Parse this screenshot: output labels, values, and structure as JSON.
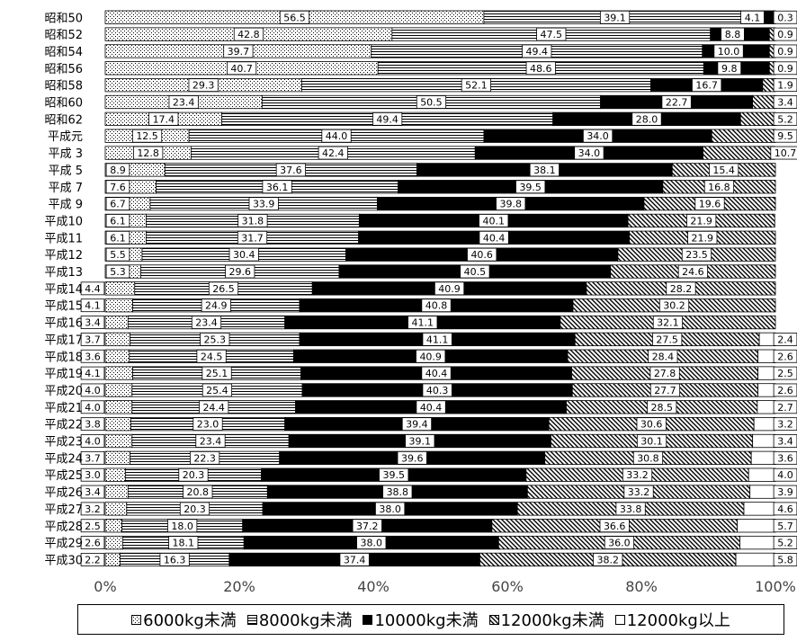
{
  "chart_data": {
    "type": "bar",
    "orientation": "horizontal",
    "stacked": true,
    "percent": true,
    "categories": [
      "昭和50",
      "昭和52",
      "昭和54",
      "昭和56",
      "昭和58",
      "昭和60",
      "昭和62",
      "平成元",
      "平成 3",
      "平成 5",
      "平成 7",
      "平成 9",
      "平成10",
      "平成11",
      "平成12",
      "平成13",
      "平成14",
      "平成15",
      "平成16",
      "平成17",
      "平成18",
      "平成19",
      "平成20",
      "平成21",
      "平成22",
      "平成23",
      "平成24",
      "平成25",
      "平成26",
      "平成27",
      "平成28",
      "平成29",
      "平成30"
    ],
    "series": [
      {
        "name": "6000kg未満",
        "pattern": "dots",
        "values": [
          56.5,
          42.8,
          39.7,
          40.7,
          29.3,
          23.4,
          17.4,
          12.5,
          12.8,
          8.9,
          7.6,
          6.7,
          6.1,
          6.1,
          5.5,
          5.3,
          4.4,
          4.1,
          3.4,
          3.7,
          3.6,
          4.1,
          4.0,
          4.0,
          3.8,
          4.0,
          3.7,
          3.0,
          3.4,
          3.2,
          2.5,
          2.6,
          2.2
        ]
      },
      {
        "name": "8000kg未満",
        "pattern": "horizontal-lines",
        "values": [
          39.1,
          47.5,
          49.4,
          48.6,
          52.1,
          50.5,
          49.4,
          44.0,
          42.4,
          37.6,
          36.1,
          33.9,
          31.8,
          31.7,
          30.4,
          29.6,
          26.5,
          24.9,
          23.4,
          25.3,
          24.5,
          25.1,
          25.4,
          24.4,
          23.0,
          23.4,
          22.3,
          20.3,
          20.8,
          20.3,
          18.0,
          18.1,
          16.3
        ]
      },
      {
        "name": "10000kg未満",
        "pattern": "solid-black",
        "values": [
          4.1,
          8.8,
          10.0,
          9.8,
          16.7,
          22.7,
          28.0,
          34.0,
          34.0,
          38.1,
          39.5,
          39.8,
          40.1,
          40.4,
          40.6,
          40.5,
          40.9,
          40.8,
          41.1,
          41.1,
          40.9,
          40.4,
          40.3,
          40.4,
          39.4,
          39.1,
          39.6,
          39.5,
          38.8,
          38.0,
          37.2,
          38.0,
          37.4
        ]
      },
      {
        "name": "12000kg未満",
        "pattern": "diagonal-hatch",
        "values": [
          0.3,
          0.9,
          0.9,
          0.9,
          1.9,
          3.4,
          5.2,
          9.5,
          10.7,
          15.4,
          16.8,
          19.6,
          21.9,
          21.9,
          23.5,
          24.6,
          28.2,
          30.2,
          32.1,
          27.5,
          28.4,
          27.8,
          27.7,
          28.5,
          30.6,
          30.1,
          30.8,
          33.2,
          33.2,
          33.8,
          36.6,
          36.0,
          38.2
        ]
      },
      {
        "name": "12000kg以上",
        "pattern": "white",
        "values": [
          null,
          null,
          null,
          null,
          null,
          null,
          null,
          null,
          null,
          null,
          null,
          null,
          null,
          null,
          null,
          null,
          null,
          null,
          null,
          2.4,
          2.6,
          2.5,
          2.6,
          2.7,
          3.2,
          3.4,
          3.6,
          4.0,
          3.9,
          4.6,
          5.7,
          5.2,
          5.8
        ]
      }
    ],
    "x_ticks": [
      "0%",
      "20%",
      "40%",
      "60%",
      "80%",
      "100%"
    ],
    "xlim": [
      0,
      100
    ],
    "legend_position": "bottom",
    "grid": false
  },
  "legend": {
    "items": [
      "6000kg未満",
      "8000kg未満",
      "10000kg未満",
      "12000kg未満",
      "12000kg以上"
    ]
  }
}
